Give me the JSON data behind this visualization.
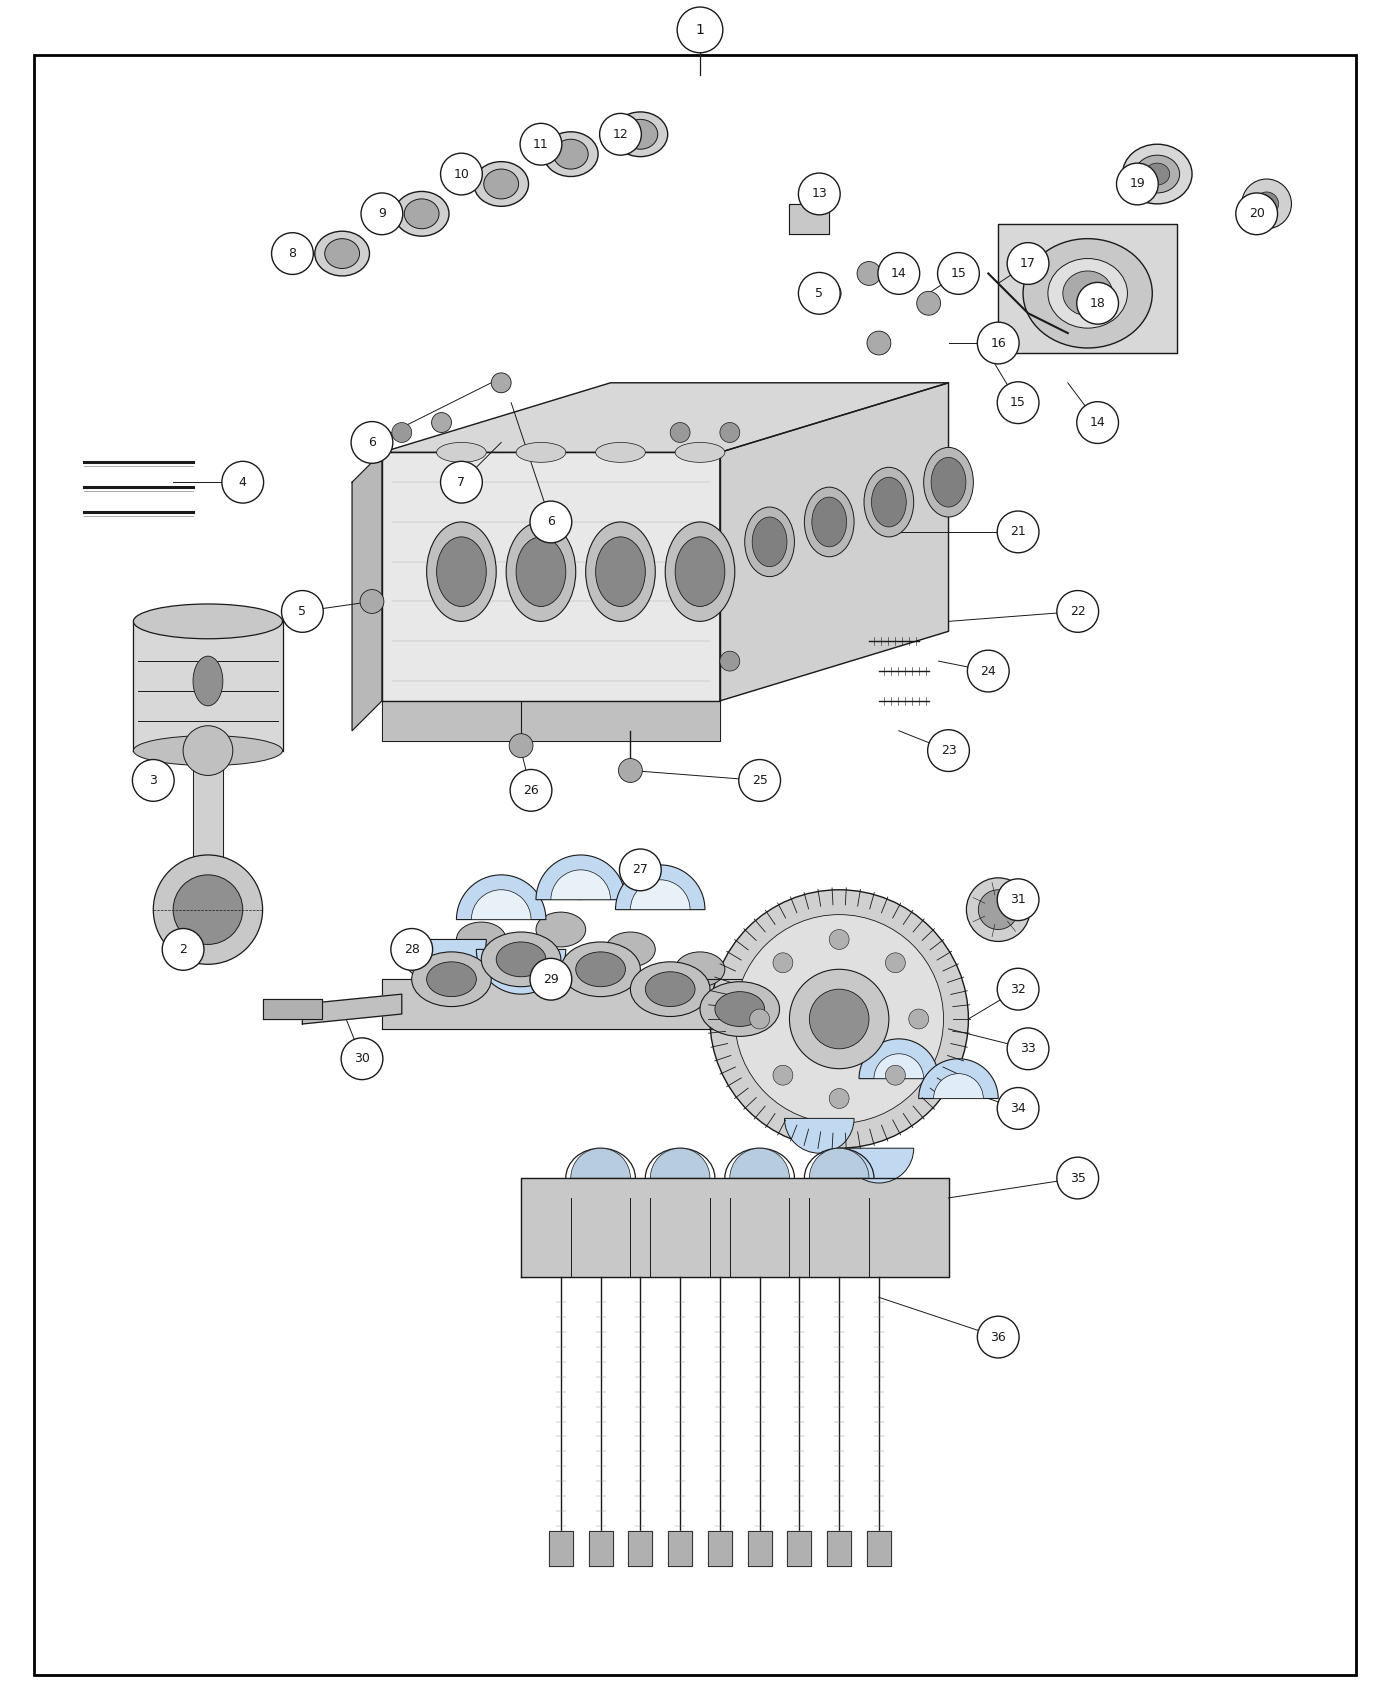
{
  "bg_color": "#ffffff",
  "border_color": "#000000",
  "line_color": "#1a1a1a",
  "fig_width": 14.0,
  "fig_height": 17.0,
  "dpi": 100
}
